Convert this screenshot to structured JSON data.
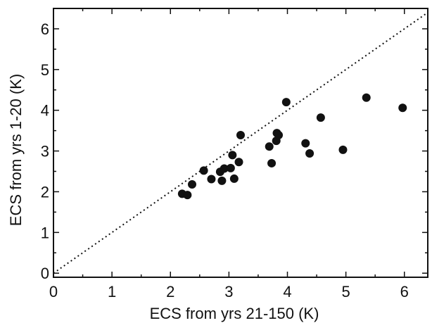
{
  "chart_data": {
    "type": "scatter",
    "title": "",
    "xlabel": "ECS from yrs 21-150 (K)",
    "ylabel": "ECS from yrs 1-20 (K)",
    "xlim": [
      0,
      6.4
    ],
    "ylim": [
      -0.1,
      6.5
    ],
    "xticks": [
      0,
      1,
      2,
      3,
      4,
      5,
      6
    ],
    "yticks": [
      0,
      1,
      2,
      3,
      4,
      5,
      6
    ],
    "grid": false,
    "reference_line": {
      "label": "",
      "style": "dotted",
      "x": [
        0,
        6.4
      ],
      "y": [
        0,
        6.4
      ]
    },
    "series": [
      {
        "name": "",
        "color": "#111111",
        "points": [
          {
            "x": 2.2,
            "y": 1.95
          },
          {
            "x": 2.29,
            "y": 1.92
          },
          {
            "x": 2.37,
            "y": 2.18
          },
          {
            "x": 2.57,
            "y": 2.52
          },
          {
            "x": 2.7,
            "y": 2.31
          },
          {
            "x": 2.85,
            "y": 2.49
          },
          {
            "x": 2.88,
            "y": 2.27
          },
          {
            "x": 2.92,
            "y": 2.57
          },
          {
            "x": 3.03,
            "y": 2.58
          },
          {
            "x": 3.06,
            "y": 2.9
          },
          {
            "x": 3.09,
            "y": 2.32
          },
          {
            "x": 3.17,
            "y": 2.73
          },
          {
            "x": 3.2,
            "y": 3.39
          },
          {
            "x": 3.69,
            "y": 3.11
          },
          {
            "x": 3.73,
            "y": 2.7
          },
          {
            "x": 3.81,
            "y": 3.25
          },
          {
            "x": 3.82,
            "y": 3.44
          },
          {
            "x": 3.85,
            "y": 3.39
          },
          {
            "x": 3.98,
            "y": 4.2
          },
          {
            "x": 4.31,
            "y": 3.19
          },
          {
            "x": 4.38,
            "y": 2.94
          },
          {
            "x": 4.57,
            "y": 3.82
          },
          {
            "x": 4.95,
            "y": 3.03
          },
          {
            "x": 5.35,
            "y": 4.31
          },
          {
            "x": 5.97,
            "y": 4.06
          }
        ]
      }
    ]
  }
}
